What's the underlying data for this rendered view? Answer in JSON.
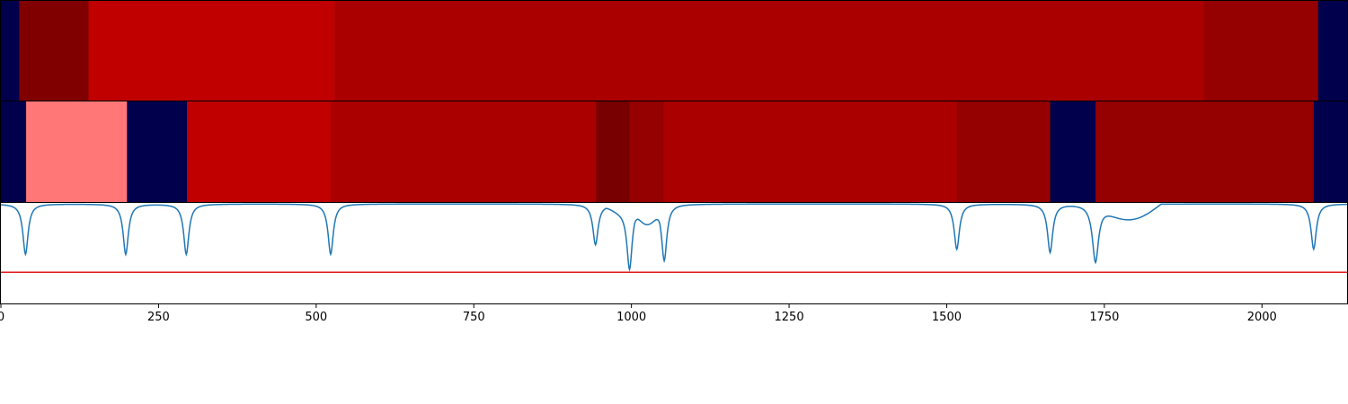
{
  "chart_data": {
    "type": "segmentation-with-signal",
    "x_range": [
      0,
      2135
    ],
    "x_ticks": [
      0,
      250,
      500,
      750,
      1000,
      1250,
      1500,
      1750,
      2000
    ],
    "x_tick_labels": [
      "0",
      "250",
      "500",
      "750",
      "1000",
      "1250",
      "1500",
      "1750",
      "2000"
    ],
    "panels": [
      {
        "type": "segment_bar",
        "segments": [
          {
            "start": 0,
            "end": 29,
            "color": "#00004c"
          },
          {
            "start": 29,
            "end": 139,
            "color": "#800000"
          },
          {
            "start": 139,
            "end": 529,
            "color": "#c00000"
          },
          {
            "start": 529,
            "end": 1908,
            "color": "#aa0000"
          },
          {
            "start": 1908,
            "end": 2089,
            "color": "#950000"
          },
          {
            "start": 2089,
            "end": 2135,
            "color": "#00004c"
          }
        ]
      },
      {
        "type": "segment_bar",
        "segments": [
          {
            "start": 0,
            "end": 40,
            "color": "#00004c"
          },
          {
            "start": 40,
            "end": 200,
            "color": "#ff7777"
          },
          {
            "start": 200,
            "end": 295,
            "color": "#00004c"
          },
          {
            "start": 295,
            "end": 523,
            "color": "#c00000"
          },
          {
            "start": 523,
            "end": 944,
            "color": "#aa0000"
          },
          {
            "start": 944,
            "end": 997,
            "color": "#780000"
          },
          {
            "start": 997,
            "end": 1051,
            "color": "#950000"
          },
          {
            "start": 1051,
            "end": 1516,
            "color": "#aa0000"
          },
          {
            "start": 1516,
            "end": 1664,
            "color": "#950000"
          },
          {
            "start": 1664,
            "end": 1736,
            "color": "#00004c"
          },
          {
            "start": 1736,
            "end": 2082,
            "color": "#950000"
          },
          {
            "start": 2082,
            "end": 2135,
            "color": "#00004c"
          }
        ]
      },
      {
        "type": "line",
        "y_range": [
          0,
          1
        ],
        "baseline": 0.99,
        "threshold": 0.31,
        "line_color": "#1f77b4",
        "threshold_color": "#e31a1c",
        "dips": [
          {
            "x": 39,
            "depth": 0.5,
            "width": 5
          },
          {
            "x": 198,
            "depth": 0.5,
            "width": 5
          },
          {
            "x": 294,
            "depth": 0.5,
            "width": 5
          },
          {
            "x": 523,
            "depth": 0.5,
            "width": 5
          },
          {
            "x": 943,
            "depth": 0.4,
            "width": 5
          },
          {
            "x": 997,
            "depth": 0.6,
            "width": 5
          },
          {
            "x": 1052,
            "depth": 0.56,
            "width": 5
          },
          {
            "x": 1516,
            "depth": 0.45,
            "width": 5
          },
          {
            "x": 1664,
            "depth": 0.48,
            "width": 5
          },
          {
            "x": 1736,
            "depth": 0.58,
            "width": 6
          },
          {
            "x": 2082,
            "depth": 0.45,
            "width": 5
          }
        ],
        "bumps": [
          {
            "start": 960,
            "end": 1010,
            "depth": 0.1
          },
          {
            "start": 1005,
            "end": 1045,
            "depth": 0.28
          },
          {
            "start": 1740,
            "end": 1840,
            "depth": 0.25
          }
        ]
      }
    ]
  }
}
